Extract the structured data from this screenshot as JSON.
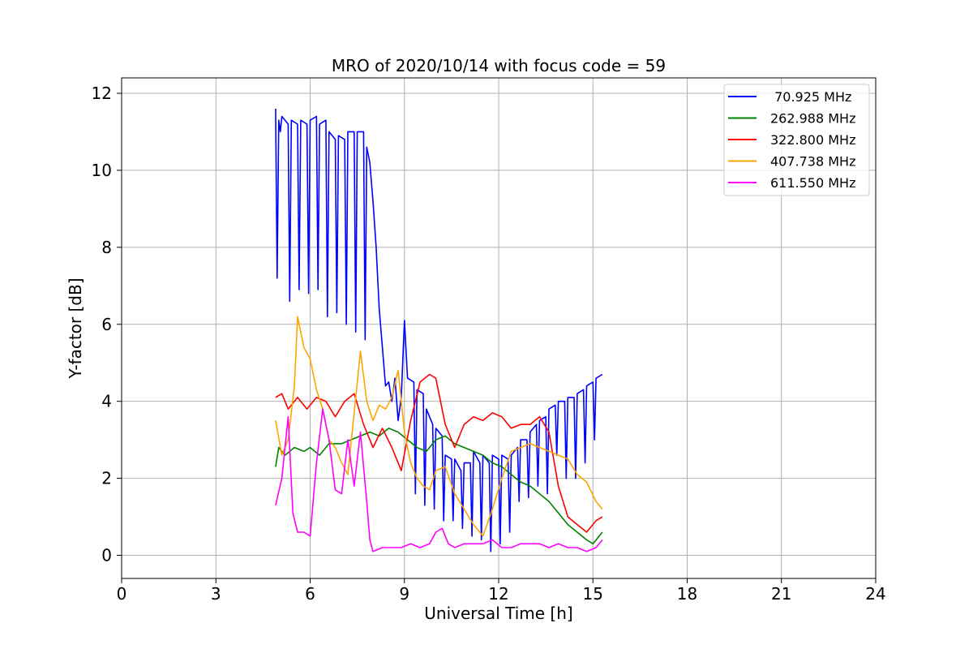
{
  "chart_data": {
    "type": "line",
    "title": "MRO of 2020/10/14 with focus code = 59",
    "xlabel": "Universal Time [h]",
    "ylabel": "Y-factor [dB]",
    "xlim": [
      0,
      24
    ],
    "ylim": [
      -0.6,
      12.4
    ],
    "xticks": [
      0,
      3,
      6,
      9,
      12,
      15,
      18,
      21,
      24
    ],
    "yticks": [
      0,
      2,
      4,
      6,
      8,
      10,
      12
    ],
    "grid": true,
    "legend_position": "top-right",
    "series": [
      {
        "name": " 70.925 MHz",
        "color": "#0000ff",
        "x": [
          4.9,
          4.95,
          5.0,
          5.05,
          5.1,
          5.3,
          5.35,
          5.4,
          5.6,
          5.65,
          5.7,
          5.9,
          5.95,
          6.0,
          6.2,
          6.25,
          6.3,
          6.5,
          6.55,
          6.6,
          6.8,
          6.85,
          6.9,
          7.1,
          7.15,
          7.2,
          7.4,
          7.45,
          7.5,
          7.7,
          7.75,
          7.8,
          7.9,
          8.0,
          8.1,
          8.2,
          8.3,
          8.4,
          8.5,
          8.6,
          8.7,
          8.8,
          8.9,
          9.0,
          9.1,
          9.3,
          9.35,
          9.4,
          9.6,
          9.65,
          9.7,
          9.9,
          9.95,
          10.0,
          10.2,
          10.25,
          10.3,
          10.5,
          10.55,
          10.6,
          10.8,
          10.85,
          10.9,
          11.1,
          11.15,
          11.2,
          11.4,
          11.45,
          11.5,
          11.7,
          11.75,
          11.8,
          12.0,
          12.05,
          12.1,
          12.3,
          12.35,
          12.4,
          12.6,
          12.65,
          12.7,
          12.9,
          12.95,
          13.0,
          13.2,
          13.25,
          13.3,
          13.5,
          13.55,
          13.6,
          13.8,
          13.85,
          13.9,
          14.1,
          14.15,
          14.2,
          14.4,
          14.45,
          14.5,
          14.7,
          14.75,
          14.8,
          15.0,
          15.05,
          15.1,
          15.3
        ],
        "y": [
          11.6,
          7.2,
          11.3,
          11.0,
          11.4,
          11.2,
          6.6,
          11.3,
          11.2,
          6.9,
          11.3,
          11.2,
          6.8,
          11.3,
          11.4,
          6.9,
          11.2,
          11.3,
          6.2,
          11.0,
          10.8,
          6.3,
          10.9,
          10.8,
          6.0,
          11.0,
          11.0,
          5.8,
          11.0,
          11.0,
          5.6,
          10.6,
          10.2,
          9.2,
          8.0,
          6.4,
          5.4,
          4.4,
          4.5,
          4.0,
          4.6,
          3.5,
          4.1,
          6.1,
          4.6,
          4.5,
          1.6,
          4.3,
          4.2,
          1.3,
          3.8,
          3.4,
          1.2,
          3.3,
          3.1,
          0.9,
          2.6,
          2.5,
          0.9,
          2.5,
          2.2,
          0.7,
          2.4,
          2.4,
          0.5,
          2.7,
          2.4,
          0.4,
          2.6,
          2.4,
          0.1,
          2.6,
          2.5,
          0.3,
          2.6,
          2.5,
          0.6,
          2.6,
          2.8,
          1.4,
          3.0,
          3.0,
          1.5,
          3.2,
          3.4,
          1.8,
          3.5,
          3.6,
          1.6,
          3.8,
          3.9,
          2.6,
          4.0,
          4.0,
          2.0,
          4.1,
          4.1,
          2.0,
          4.2,
          4.3,
          2.4,
          4.4,
          4.5,
          3.0,
          4.6,
          4.7
        ]
      },
      {
        "name": "262.988 MHz",
        "color": "#008000",
        "x": [
          4.9,
          5.0,
          5.2,
          5.5,
          5.8,
          6.0,
          6.3,
          6.6,
          7.0,
          7.3,
          7.6,
          7.9,
          8.2,
          8.5,
          8.8,
          9.1,
          9.4,
          9.7,
          10.0,
          10.3,
          10.6,
          10.9,
          11.2,
          11.5,
          11.8,
          12.1,
          12.4,
          12.7,
          13.0,
          13.3,
          13.6,
          13.9,
          14.2,
          14.5,
          14.8,
          15.0,
          15.3
        ],
        "y": [
          2.3,
          2.8,
          2.6,
          2.8,
          2.7,
          2.8,
          2.6,
          2.9,
          2.9,
          3.0,
          3.1,
          3.2,
          3.1,
          3.3,
          3.2,
          3.0,
          2.8,
          2.7,
          3.0,
          3.1,
          2.9,
          2.8,
          2.7,
          2.6,
          2.4,
          2.3,
          2.1,
          1.9,
          1.8,
          1.6,
          1.4,
          1.1,
          0.8,
          0.6,
          0.4,
          0.3,
          0.6
        ]
      },
      {
        "name": "322.800 MHz",
        "color": "#ff0000",
        "x": [
          4.9,
          5.1,
          5.3,
          5.6,
          5.9,
          6.2,
          6.5,
          6.8,
          7.1,
          7.4,
          7.7,
          8.0,
          8.3,
          8.6,
          8.9,
          9.2,
          9.5,
          9.8,
          10.0,
          10.3,
          10.6,
          10.9,
          11.2,
          11.5,
          11.8,
          12.1,
          12.4,
          12.7,
          13.0,
          13.3,
          13.6,
          13.9,
          14.2,
          14.5,
          14.8,
          15.1,
          15.3
        ],
        "y": [
          4.1,
          4.2,
          3.8,
          4.1,
          3.8,
          4.1,
          4.0,
          3.6,
          4.0,
          4.2,
          3.4,
          2.8,
          3.3,
          2.8,
          2.2,
          3.5,
          4.5,
          4.7,
          4.6,
          3.4,
          2.8,
          3.4,
          3.6,
          3.5,
          3.7,
          3.6,
          3.3,
          3.4,
          3.4,
          3.6,
          3.2,
          1.8,
          1.0,
          0.8,
          0.6,
          0.9,
          1.0
        ]
      },
      {
        "name": "407.738 MHz",
        "color": "#ffa500",
        "x": [
          4.9,
          5.1,
          5.3,
          5.5,
          5.6,
          5.8,
          6.0,
          6.2,
          6.4,
          6.6,
          6.8,
          7.0,
          7.2,
          7.4,
          7.6,
          7.8,
          8.0,
          8.2,
          8.4,
          8.6,
          8.8,
          9.0,
          9.2,
          9.4,
          9.6,
          9.8,
          10.0,
          10.3,
          10.6,
          10.9,
          11.2,
          11.5,
          11.8,
          12.1,
          12.4,
          12.7,
          13.0,
          13.3,
          13.6,
          13.9,
          14.2,
          14.5,
          14.8,
          15.1,
          15.3
        ],
        "y": [
          3.5,
          2.6,
          3.0,
          4.4,
          6.2,
          5.4,
          5.1,
          4.3,
          3.8,
          3.0,
          2.8,
          2.4,
          2.1,
          3.7,
          5.3,
          4.0,
          3.5,
          3.9,
          3.8,
          4.1,
          4.8,
          3.2,
          2.4,
          2.0,
          1.8,
          1.7,
          2.2,
          2.3,
          1.6,
          1.2,
          0.8,
          0.5,
          1.2,
          2.0,
          2.7,
          2.8,
          2.9,
          2.8,
          2.7,
          2.6,
          2.5,
          2.1,
          1.9,
          1.4,
          1.2
        ]
      },
      {
        "name": "611.550 MHz",
        "color": "#ff00ff",
        "x": [
          4.9,
          5.1,
          5.3,
          5.45,
          5.6,
          5.8,
          6.0,
          6.2,
          6.4,
          6.6,
          6.8,
          7.0,
          7.2,
          7.4,
          7.6,
          7.8,
          7.9,
          8.0,
          8.3,
          8.6,
          8.9,
          9.2,
          9.5,
          9.8,
          10.0,
          10.2,
          10.4,
          10.6,
          10.9,
          11.2,
          11.5,
          11.8,
          12.1,
          12.4,
          12.7,
          13.0,
          13.3,
          13.6,
          13.9,
          14.2,
          14.5,
          14.8,
          15.1,
          15.3
        ],
        "y": [
          1.3,
          2.0,
          3.6,
          1.1,
          0.6,
          0.6,
          0.5,
          2.4,
          3.8,
          3.0,
          1.7,
          1.6,
          3.0,
          1.8,
          3.2,
          1.4,
          0.4,
          0.1,
          0.2,
          0.2,
          0.2,
          0.3,
          0.2,
          0.3,
          0.6,
          0.7,
          0.3,
          0.2,
          0.3,
          0.3,
          0.3,
          0.4,
          0.2,
          0.2,
          0.3,
          0.3,
          0.3,
          0.2,
          0.3,
          0.2,
          0.2,
          0.1,
          0.2,
          0.4
        ]
      }
    ]
  }
}
